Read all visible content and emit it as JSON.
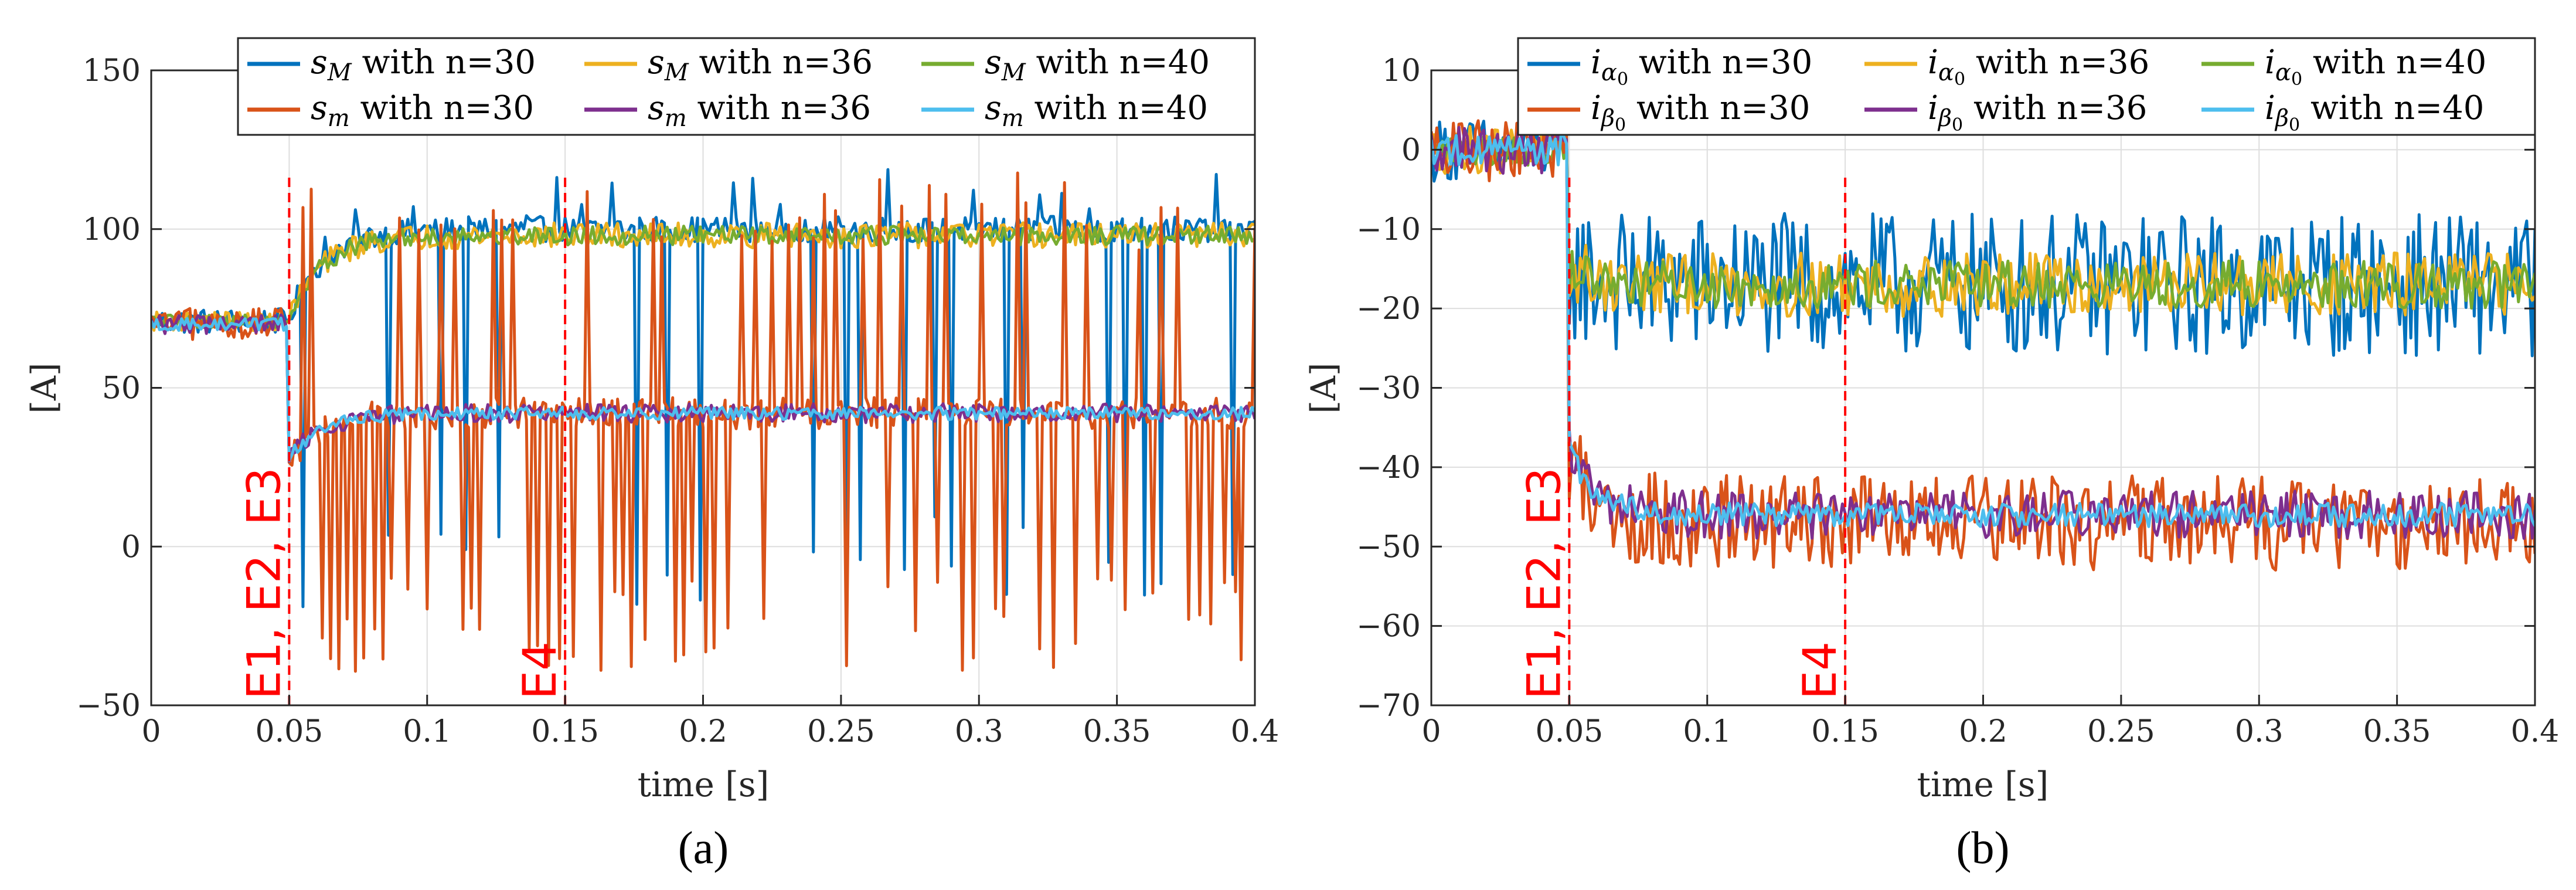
{
  "panels": [
    {
      "caption": "(a)",
      "ylabel": "[A]",
      "xlabel": "time [s]",
      "xlim": [
        0,
        0.4
      ],
      "ylim": [
        -50,
        150
      ],
      "xticks": [
        0,
        0.05,
        0.1,
        0.15,
        0.2,
        0.25,
        0.3,
        0.35,
        0.4
      ],
      "xtick_labels": [
        "0",
        "0.05",
        "0.1",
        "0.15",
        "0.2",
        "0.25",
        "0.3",
        "0.35",
        "0.4"
      ],
      "yticks": [
        -50,
        0,
        50,
        100,
        150
      ],
      "ytick_labels": [
        "−50",
        "0",
        "50",
        "100",
        "150"
      ],
      "events": [
        {
          "x": 0.05,
          "label": "E1, E2, E3"
        },
        {
          "x": 0.15,
          "label": "E4"
        }
      ],
      "legend": [
        {
          "sym": "s",
          "sub": "M",
          "text": " with n=30",
          "color": "#0072BD"
        },
        {
          "sym": "s",
          "sub": "M",
          "text": " with n=36",
          "color": "#EDB120"
        },
        {
          "sym": "s",
          "sub": "M",
          "text": " with n=40",
          "color": "#77AC30"
        },
        {
          "sym": "s",
          "sub": "m",
          "text": " with n=30",
          "color": "#D95319"
        },
        {
          "sym": "s",
          "sub": "m",
          "text": " with n=36",
          "color": "#7E2F8E"
        },
        {
          "sym": "s",
          "sub": "m",
          "text": " with n=40",
          "color": "#4DBEEE"
        }
      ]
    },
    {
      "caption": "(b)",
      "ylabel": "[A]",
      "xlabel": "time [s]",
      "xlim": [
        0,
        0.4
      ],
      "ylim": [
        -70,
        10
      ],
      "xticks": [
        0,
        0.05,
        0.1,
        0.15,
        0.2,
        0.25,
        0.3,
        0.35,
        0.4
      ],
      "xtick_labels": [
        "0",
        "0.05",
        "0.1",
        "0.15",
        "0.2",
        "0.25",
        "0.3",
        "0.35",
        "0.4"
      ],
      "yticks": [
        -70,
        -60,
        -50,
        -40,
        -30,
        -20,
        -10,
        0,
        10
      ],
      "ytick_labels": [
        "−70",
        "−60",
        "−50",
        "−40",
        "−30",
        "−20",
        "−10",
        "0",
        "10"
      ],
      "events": [
        {
          "x": 0.05,
          "label": "E1, E2, E3"
        },
        {
          "x": 0.15,
          "label": "E4"
        }
      ],
      "legend": [
        {
          "sym": "i",
          "sub": "α",
          "subsub": "0",
          "text": " with n=30",
          "color": "#0072BD"
        },
        {
          "sym": "i",
          "sub": "α",
          "subsub": "0",
          "text": " with n=36",
          "color": "#EDB120"
        },
        {
          "sym": "i",
          "sub": "α",
          "subsub": "0",
          "text": " with n=40",
          "color": "#77AC30"
        },
        {
          "sym": "i",
          "sub": "β",
          "subsub": "0",
          "text": " with n=30",
          "color": "#D95319"
        },
        {
          "sym": "i",
          "sub": "β",
          "subsub": "0",
          "text": " with n=36",
          "color": "#7E2F8E"
        },
        {
          "sym": "i",
          "sub": "β",
          "subsub": "0",
          "text": " with n=40",
          "color": "#4DBEEE"
        }
      ]
    }
  ],
  "chart_data": [
    {
      "type": "line",
      "title": "(a)",
      "xlabel": "time [s]",
      "ylabel": "[A]",
      "xlim": [
        0,
        0.4
      ],
      "ylim": [
        -50,
        150
      ],
      "grid": true,
      "legend_position": "top-right",
      "x_step": 0.001,
      "series": [
        {
          "name": "s_M with n=30",
          "color": "#0072BD",
          "pre": 71,
          "pre_noise": 4,
          "step_at": 0.05,
          "dip": 72,
          "post": 100,
          "rise_tau": 0.012,
          "noise": 4,
          "spikes": 1,
          "spike_period": 0.008,
          "spike_low": -20,
          "spike_high": 120
        },
        {
          "name": "s_M with n=36",
          "color": "#EDB120",
          "pre": 71,
          "pre_noise": 3,
          "step_at": 0.05,
          "dip": 72,
          "post": 98,
          "rise_tau": 0.012,
          "noise": 4,
          "spikes": 0
        },
        {
          "name": "s_M with n=40",
          "color": "#77AC30",
          "pre": 71,
          "pre_noise": 2,
          "step_at": 0.05,
          "dip": 72,
          "post": 98,
          "rise_tau": 0.012,
          "noise": 3,
          "spikes": 0
        },
        {
          "name": "s_m with n=30",
          "color": "#D95319",
          "pre": 70,
          "pre_noise": 5,
          "step_at": 0.05,
          "dip": 28,
          "post": 42,
          "rise_tau": 0.012,
          "noise": 5,
          "spikes": 1,
          "spike_period": 0.0035,
          "spike_low": -40,
          "spike_high": 118
        },
        {
          "name": "s_m with n=36",
          "color": "#7E2F8E",
          "pre": 70,
          "pre_noise": 3,
          "step_at": 0.05,
          "dip": 28,
          "post": 42,
          "rise_tau": 0.012,
          "noise": 3,
          "spikes": 0
        },
        {
          "name": "s_m with n=40",
          "color": "#4DBEEE",
          "pre": 70,
          "pre_noise": 2,
          "step_at": 0.05,
          "dip": 28,
          "post": 42,
          "rise_tau": 0.012,
          "noise": 2,
          "spikes": 0
        }
      ]
    },
    {
      "type": "line",
      "title": "(b)",
      "xlabel": "time [s]",
      "ylabel": "[A]",
      "xlim": [
        0,
        0.4
      ],
      "ylim": [
        -70,
        10
      ],
      "grid": true,
      "legend_position": "top-right",
      "x_step": 0.001,
      "series": [
        {
          "name": "i_α0 with n=30",
          "color": "#0072BD",
          "pre": 0,
          "pre_noise": 4,
          "step_at": 0.05,
          "dip": -15,
          "post": -17,
          "rise_tau": 0.01,
          "noise": 9,
          "spikes": 0
        },
        {
          "name": "i_α0 with n=36",
          "color": "#EDB120",
          "pre": 0,
          "pre_noise": 3,
          "step_at": 0.05,
          "dip": -15,
          "post": -17,
          "rise_tau": 0.01,
          "noise": 4,
          "spikes": 0
        },
        {
          "name": "i_α0 with n=40",
          "color": "#77AC30",
          "pre": 0,
          "pre_noise": 2,
          "step_at": 0.05,
          "dip": -15,
          "post": -17,
          "rise_tau": 0.01,
          "noise": 3,
          "spikes": 0
        },
        {
          "name": "i_β0 with n=30",
          "color": "#D95319",
          "pre": 0,
          "pre_noise": 4,
          "step_at": 0.05,
          "dip": -38,
          "post": -47,
          "rise_tau": 0.01,
          "noise": 6,
          "spikes": 0
        },
        {
          "name": "i_β0 with n=36",
          "color": "#7E2F8E",
          "pre": 0,
          "pre_noise": 3,
          "step_at": 0.05,
          "dip": -38,
          "post": -46,
          "rise_tau": 0.01,
          "noise": 3,
          "spikes": 0
        },
        {
          "name": "i_β0 with n=40",
          "color": "#4DBEEE",
          "pre": 0,
          "pre_noise": 2,
          "step_at": 0.05,
          "dip": -38,
          "post": -46,
          "rise_tau": 0.01,
          "noise": 1.5,
          "spikes": 0
        }
      ]
    }
  ]
}
